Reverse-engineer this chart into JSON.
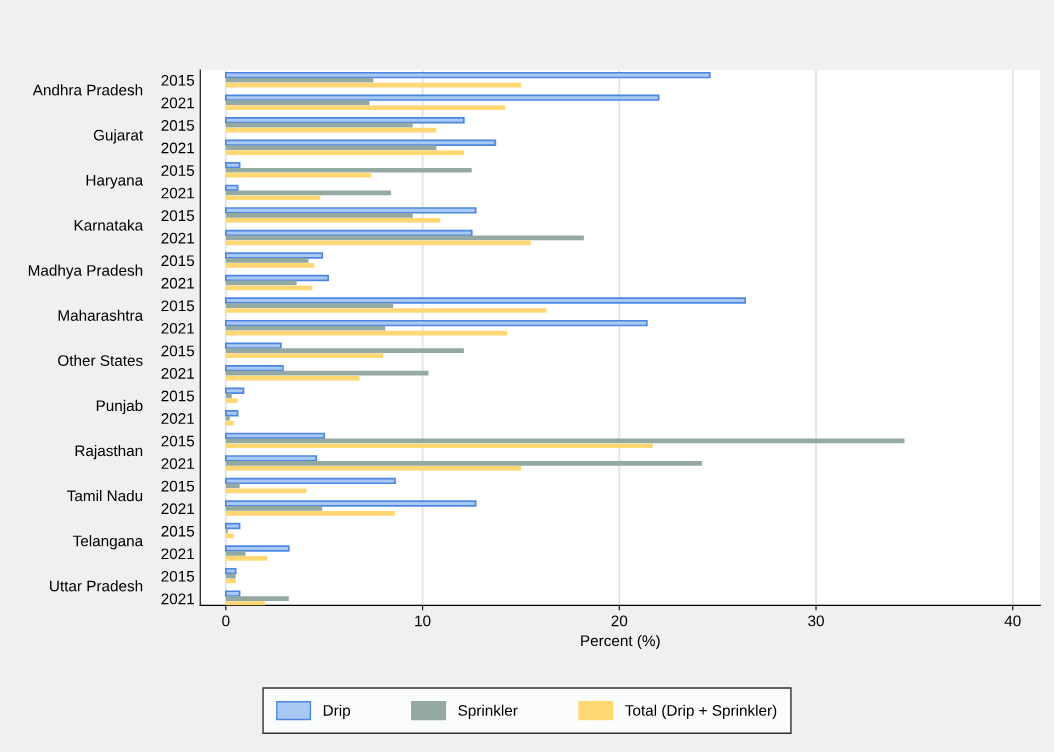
{
  "chart_data": {
    "type": "bar",
    "orientation": "horizontal",
    "xlabel": "Percent (%)",
    "categories": [
      "2015",
      "2021",
      "2015",
      "2021",
      "2015",
      "2021",
      "2015",
      "2021",
      "2015",
      "2021",
      "2015",
      "2021",
      "2015",
      "2021",
      "2015",
      "2021",
      "2015",
      "2021",
      "2015",
      "2021",
      "2015",
      "2021",
      "2015",
      "2021"
    ],
    "annotations": [
      "Andhra Pradesh",
      "Gujarat",
      "Haryana",
      "Karnataka",
      "Madhya Pradesh",
      "Maharashtra",
      "Other States",
      "Punjab",
      "Rajasthan",
      "Tamil Nadu",
      "Telangana",
      "Uttar Pradesh"
    ],
    "series": [
      {
        "name": "Drip",
        "color": "#a9c9f5",
        "values": [
          24.6,
          22.0,
          12.1,
          13.7,
          0.7,
          0.6,
          12.7,
          12.5,
          4.9,
          5.2,
          26.4,
          21.4,
          2.8,
          2.9,
          0.9,
          0.6,
          5.0,
          4.6,
          8.6,
          12.7,
          0.7,
          3.2,
          0.5,
          0.7
        ]
      },
      {
        "name": "Sprinkler",
        "color": "#94a9a2",
        "values": [
          7.5,
          7.3,
          9.5,
          10.7,
          12.5,
          8.4,
          9.5,
          18.2,
          4.2,
          3.6,
          8.5,
          8.1,
          12.1,
          10.3,
          0.3,
          0.2,
          34.5,
          24.2,
          0.7,
          4.9,
          0.1,
          1.0,
          0.5,
          3.2
        ]
      },
      {
        "name": "Total (Drip + Sprinkler)",
        "color": "#ffd874",
        "values": [
          15.0,
          14.2,
          10.7,
          12.1,
          7.4,
          4.8,
          10.9,
          15.5,
          4.5,
          4.4,
          16.3,
          14.3,
          8.0,
          6.8,
          0.6,
          0.4,
          21.7,
          15.0,
          4.1,
          8.6,
          0.4,
          2.1,
          0.5,
          2.0
        ]
      }
    ],
    "xlim": [
      -1.3,
      41.4
    ],
    "xticks": [
      0,
      10,
      20,
      30,
      40
    ],
    "grid": "x",
    "legend": "bottom"
  }
}
